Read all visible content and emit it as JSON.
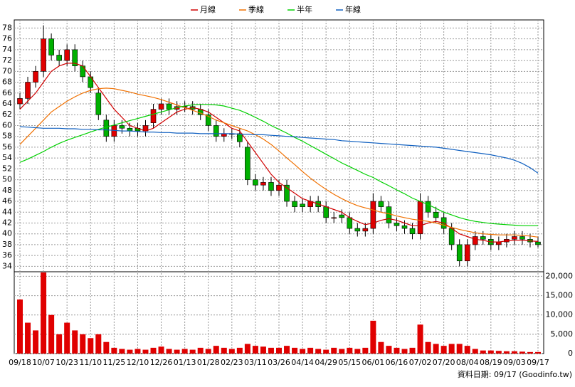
{
  "chart_data": [
    {
      "type": "candlestick",
      "legend": "top",
      "grid": true,
      "up_color": "#e00000",
      "down_color": "#00b000",
      "open": [
        64,
        65,
        68,
        70,
        76,
        73,
        72,
        74,
        71,
        69,
        66,
        61,
        58,
        60,
        59.5,
        59.5,
        59,
        60.5,
        63,
        64,
        63,
        63.5,
        63.5,
        63,
        62,
        60,
        58,
        58.5,
        58.5,
        56,
        50,
        49,
        49.5,
        48,
        49,
        46,
        45.5,
        45,
        46,
        45,
        43,
        43.5,
        43,
        41,
        40.5,
        41,
        46,
        45,
        42,
        41.5,
        41,
        40,
        46,
        44,
        43,
        41,
        38,
        35,
        38,
        39.5,
        39,
        38,
        38.5,
        39,
        39.5,
        39,
        38.5
      ],
      "high": [
        66,
        69,
        71,
        78.5,
        77,
        74,
        75,
        75,
        72,
        70,
        67,
        62,
        61,
        61,
        60.5,
        60.5,
        61,
        64,
        65,
        65,
        64.5,
        64.5,
        64.5,
        64,
        63,
        61,
        59.5,
        59.5,
        59.5,
        57,
        51,
        50.5,
        50.5,
        50,
        50,
        47,
        46.5,
        47,
        47,
        46,
        44,
        44.5,
        44,
        42,
        42,
        47.5,
        47,
        46,
        43,
        42.5,
        42,
        47.5,
        47,
        45,
        44,
        42,
        39,
        39,
        40.5,
        40.5,
        40,
        39.5,
        40,
        40.5,
        40.5,
        40,
        39.5
      ],
      "low": [
        63,
        64,
        67,
        69,
        72,
        71,
        71,
        70,
        68,
        66,
        61,
        57,
        57,
        58.5,
        58,
        58,
        58,
        59.5,
        62,
        62,
        62,
        62.5,
        62,
        61,
        59,
        57,
        57,
        57.5,
        56,
        49,
        48,
        48,
        47,
        47,
        45,
        44,
        44,
        44,
        44,
        42,
        42,
        42,
        40,
        39.5,
        39.5,
        40,
        44,
        41,
        40.5,
        40,
        39,
        39,
        43,
        42,
        40,
        37,
        34,
        34,
        37,
        38,
        37,
        37,
        37.5,
        38,
        38,
        37.5,
        37.5
      ],
      "close": [
        65,
        68,
        70,
        76,
        73,
        72,
        74,
        71,
        69,
        67,
        62,
        58,
        60,
        59.5,
        59,
        59,
        60,
        63,
        64,
        63,
        63.5,
        63.5,
        63,
        62,
        60,
        58,
        58.5,
        58.5,
        57,
        50,
        49,
        49.5,
        48,
        49,
        46,
        45,
        45,
        46,
        45,
        43,
        43,
        43,
        41,
        40.5,
        41,
        46,
        45,
        42,
        41.5,
        41,
        40,
        46,
        44,
        43,
        41,
        38,
        35,
        38,
        39.5,
        39,
        38,
        38.5,
        39,
        39.5,
        39,
        38.5,
        38
      ],
      "series": [
        {
          "name": "月線",
          "color": "#d00000",
          "values": [
            63,
            64.5,
            66,
            68,
            70,
            71,
            71.5,
            71.5,
            71,
            69,
            67,
            65,
            63,
            61.5,
            60,
            59.5,
            59,
            59.5,
            60.5,
            61.5,
            62.5,
            63,
            63.3,
            63,
            62.5,
            61.5,
            60.5,
            59.5,
            59,
            57,
            55,
            53,
            51,
            49.5,
            48.5,
            47.5,
            46.5,
            46,
            45.5,
            45,
            44.5,
            44,
            43,
            42.3,
            41.7,
            42,
            42.5,
            42.8,
            42.5,
            42,
            41.5,
            41.5,
            42,
            42.3,
            42,
            41,
            40,
            39.5,
            39,
            38.8,
            38.5,
            38.5,
            38.7,
            38.8,
            38.8,
            38.7,
            38.6
          ]
        },
        {
          "name": "季線",
          "color": "#f07000",
          "values": [
            56.5,
            58,
            59.5,
            61,
            62.5,
            63.5,
            64.5,
            65.3,
            66,
            66.5,
            66.8,
            66.9,
            66.8,
            66.5,
            66.2,
            65.8,
            65.5,
            65.2,
            64.8,
            64.3,
            63.8,
            63.3,
            62.8,
            62.3,
            61.7,
            61,
            60.5,
            60,
            59.5,
            59,
            58.3,
            57.5,
            56.5,
            55.3,
            54,
            52.8,
            51.5,
            50.3,
            49.2,
            48.2,
            47.3,
            46.5,
            45.8,
            45.2,
            44.8,
            44.4,
            44,
            43.7,
            43.3,
            43,
            42.7,
            42.5,
            42.3,
            42,
            41.6,
            41.2,
            40.8,
            40.5,
            40.2,
            40,
            39.9,
            39.8,
            39.8,
            39.8,
            39.7,
            39.6,
            39.4
          ]
        },
        {
          "name": "半年",
          "color": "#00d000",
          "values": [
            53.2,
            53.8,
            54.5,
            55.2,
            56,
            56.7,
            57.3,
            57.8,
            58.3,
            58.8,
            59.3,
            59.7,
            60.1,
            60.5,
            60.9,
            61.3,
            61.7,
            62.1,
            62.5,
            62.9,
            63.3,
            63.6,
            63.8,
            63.9,
            63.9,
            63.8,
            63.6,
            63.2,
            62.8,
            62.2,
            61.5,
            60.8,
            60,
            59.3,
            58.6,
            57.8,
            57.1,
            56.3,
            55.5,
            54.7,
            53.9,
            53.1,
            52.4,
            51.7,
            51,
            50.4,
            49.6,
            48.9,
            48.1,
            47.4,
            46.6,
            46,
            45.4,
            44.7,
            44,
            43.5,
            43,
            42.6,
            42.3,
            42.1,
            41.9,
            41.8,
            41.7,
            41.6,
            41.5,
            41.5,
            41.5
          ]
        },
        {
          "name": "年線",
          "color": "#1060c0",
          "values": [
            59.8,
            59.7,
            59.6,
            59.5,
            59.5,
            59.5,
            59.4,
            59.4,
            59.3,
            59.3,
            59.2,
            59.2,
            59.1,
            59,
            59,
            58.9,
            58.8,
            58.8,
            58.7,
            58.7,
            58.6,
            58.6,
            58.6,
            58.5,
            58.5,
            58.5,
            58.5,
            58.5,
            58.4,
            58.4,
            58.3,
            58.3,
            58.2,
            58.1,
            58,
            57.9,
            57.8,
            57.7,
            57.6,
            57.5,
            57.4,
            57.2,
            57.1,
            57,
            56.9,
            56.8,
            56.7,
            56.6,
            56.5,
            56.4,
            56.3,
            56.2,
            56.1,
            56,
            55.8,
            55.6,
            55.4,
            55.2,
            55,
            54.8,
            54.6,
            54.3,
            54,
            53.6,
            53,
            52.2,
            51.2
          ]
        }
      ],
      "ylim": [
        33,
        79.5
      ],
      "yticks": [
        34,
        36,
        38,
        40,
        42,
        44,
        46,
        48,
        50,
        52,
        54,
        56,
        58,
        60,
        62,
        64,
        66,
        68,
        70,
        72,
        74,
        76,
        78
      ]
    },
    {
      "type": "bar",
      "color": "#e00000",
      "grid": true,
      "categories": [
        "09/18",
        null,
        null,
        "10/07",
        null,
        null,
        "10/23",
        null,
        null,
        "11/10",
        null,
        null,
        "11/25",
        null,
        null,
        "12/10",
        null,
        null,
        "12/26",
        null,
        null,
        "01/13",
        null,
        null,
        "01/28",
        null,
        null,
        "02/23",
        null,
        null,
        "03/11",
        null,
        null,
        "03/26",
        null,
        null,
        "04/14",
        null,
        null,
        "04/29",
        null,
        null,
        "05/15",
        null,
        null,
        "06/01",
        null,
        null,
        "06/16",
        null,
        null,
        "07/02",
        null,
        null,
        "07/20",
        null,
        null,
        "08/04",
        null,
        null,
        "08/19",
        null,
        null,
        "09/03",
        null,
        null,
        "09/17"
      ],
      "values": [
        14000,
        8000,
        6000,
        21000,
        10000,
        5000,
        8000,
        6000,
        5000,
        4000,
        5000,
        3000,
        1500,
        1200,
        1000,
        1200,
        1000,
        1500,
        1800,
        1200,
        1000,
        1200,
        1000,
        1500,
        1200,
        2000,
        1500,
        1200,
        1500,
        2500,
        2000,
        1800,
        1500,
        1500,
        2000,
        1500,
        1200,
        1500,
        1200,
        1000,
        1500,
        1200,
        1500,
        1200,
        1500,
        8500,
        3000,
        2000,
        1500,
        1200,
        1500,
        7500,
        3000,
        2500,
        2000,
        2500,
        2500,
        2000,
        1200,
        800,
        800,
        700,
        600,
        600,
        500,
        400,
        400
      ],
      "ylim": [
        0,
        21000
      ],
      "yticks": [
        0,
        {
          "value": 5000,
          "label": "5,000"
        },
        {
          "value": 10000,
          "label": "10,000"
        },
        {
          "value": 15000,
          "label": "15,000"
        },
        {
          "value": 20000,
          "label": "20,000"
        }
      ],
      "note": "資料日期: 09/17 (Goodinfo.tw)"
    }
  ]
}
